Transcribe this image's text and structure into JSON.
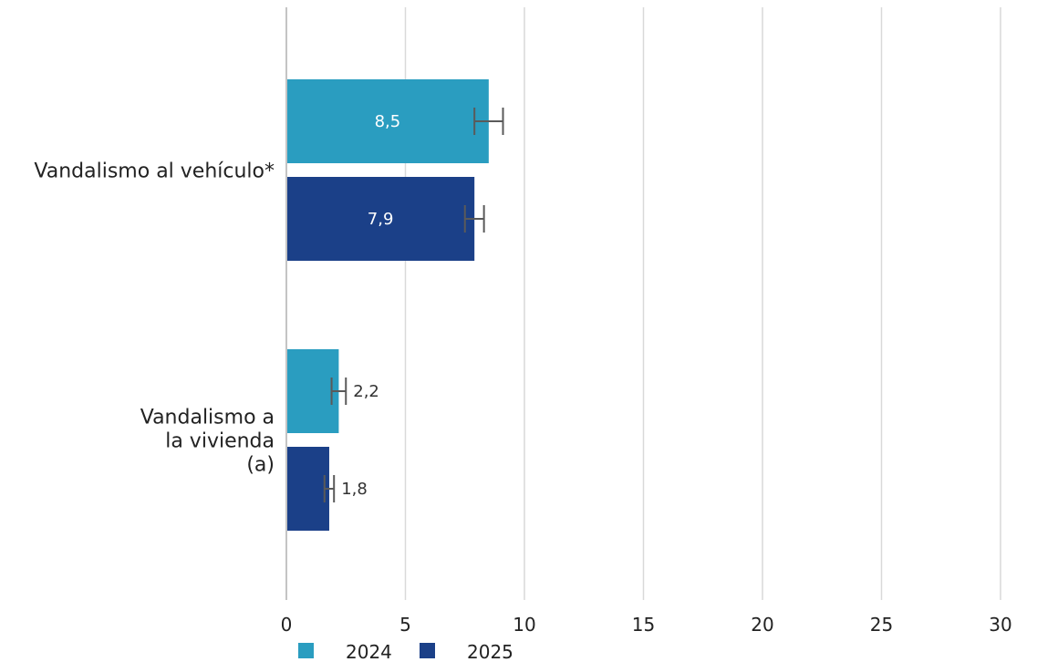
{
  "chart_data": {
    "type": "bar",
    "orientation": "horizontal",
    "categories": [
      "Vandalismo al vehículo*",
      "Vandalismo a la vivienda (a)"
    ],
    "category_lines": [
      [
        "Vandalismo al vehículo*"
      ],
      [
        "Vandalismo a",
        "la vivienda",
        "(a)"
      ]
    ],
    "series": [
      {
        "name": "2024",
        "color": "#2a9dc0",
        "values": [
          8.5,
          2.2
        ],
        "value_labels": [
          "8,5",
          "2,2"
        ],
        "error_low": [
          7.9,
          1.9
        ],
        "error_high": [
          9.1,
          2.5
        ]
      },
      {
        "name": "2025",
        "color": "#1b4088",
        "values": [
          7.9,
          1.8
        ],
        "value_labels": [
          "7,9",
          "1,8"
        ],
        "error_low": [
          7.5,
          1.6
        ],
        "error_high": [
          8.3,
          2.0
        ]
      }
    ],
    "xlim": [
      0,
      30
    ],
    "xticks": [
      0,
      5,
      10,
      15,
      20,
      25,
      30
    ],
    "xtick_labels": [
      "0",
      "5",
      "10",
      "15",
      "20",
      "25",
      "30"
    ],
    "grid": "vertical",
    "legend": "bottom",
    "title": "",
    "xlabel": "",
    "ylabel": ""
  }
}
